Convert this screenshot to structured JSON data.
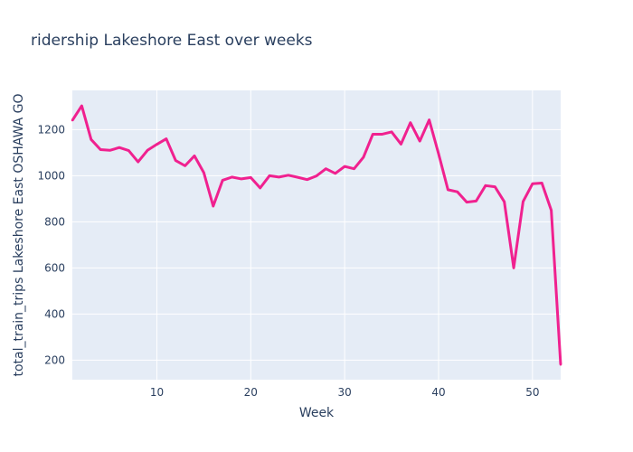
{
  "chart_data": {
    "type": "line",
    "title": "ridership Lakeshore East over weeks",
    "xlabel": "Week",
    "ylabel": "total_train_trips Lakeshore East OSHAWA GO",
    "xlim": [
      1,
      53
    ],
    "ylim": [
      115,
      1370
    ],
    "xticks": [
      10,
      20,
      30,
      40,
      50
    ],
    "yticks": [
      200,
      400,
      600,
      800,
      1000,
      1200
    ],
    "grid": true,
    "colors": {
      "plot_bg": "#e5ecf6",
      "line": "#f0218f",
      "text": "#2a3f5f",
      "grid": "#ffffff"
    },
    "series": [
      {
        "x": [
          1,
          2,
          3,
          4,
          5,
          6,
          7,
          8,
          9,
          10,
          11,
          12,
          13,
          14,
          15,
          16,
          17,
          18,
          19,
          20,
          21,
          22,
          23,
          24,
          25,
          26,
          27,
          28,
          29,
          30,
          31,
          32,
          33,
          34,
          35,
          36,
          37,
          38,
          39,
          40,
          41,
          42,
          43,
          44,
          45,
          46,
          47,
          48,
          49,
          50,
          51,
          52,
          53
        ],
        "y": [
          1240,
          1303,
          1157,
          1113,
          1110,
          1122,
          1109,
          1060,
          1110,
          1136,
          1160,
          1066,
          1043,
          1086,
          1013,
          868,
          980,
          994,
          986,
          992,
          947,
          1000,
          994,
          1002,
          993,
          983,
          999,
          1030,
          1010,
          1040,
          1030,
          1080,
          1180,
          1180,
          1190,
          1137,
          1230,
          1150,
          1242,
          1095,
          939,
          930,
          885,
          890,
          957,
          952,
          887,
          600,
          888,
          965,
          968,
          850,
          180
        ]
      }
    ]
  }
}
